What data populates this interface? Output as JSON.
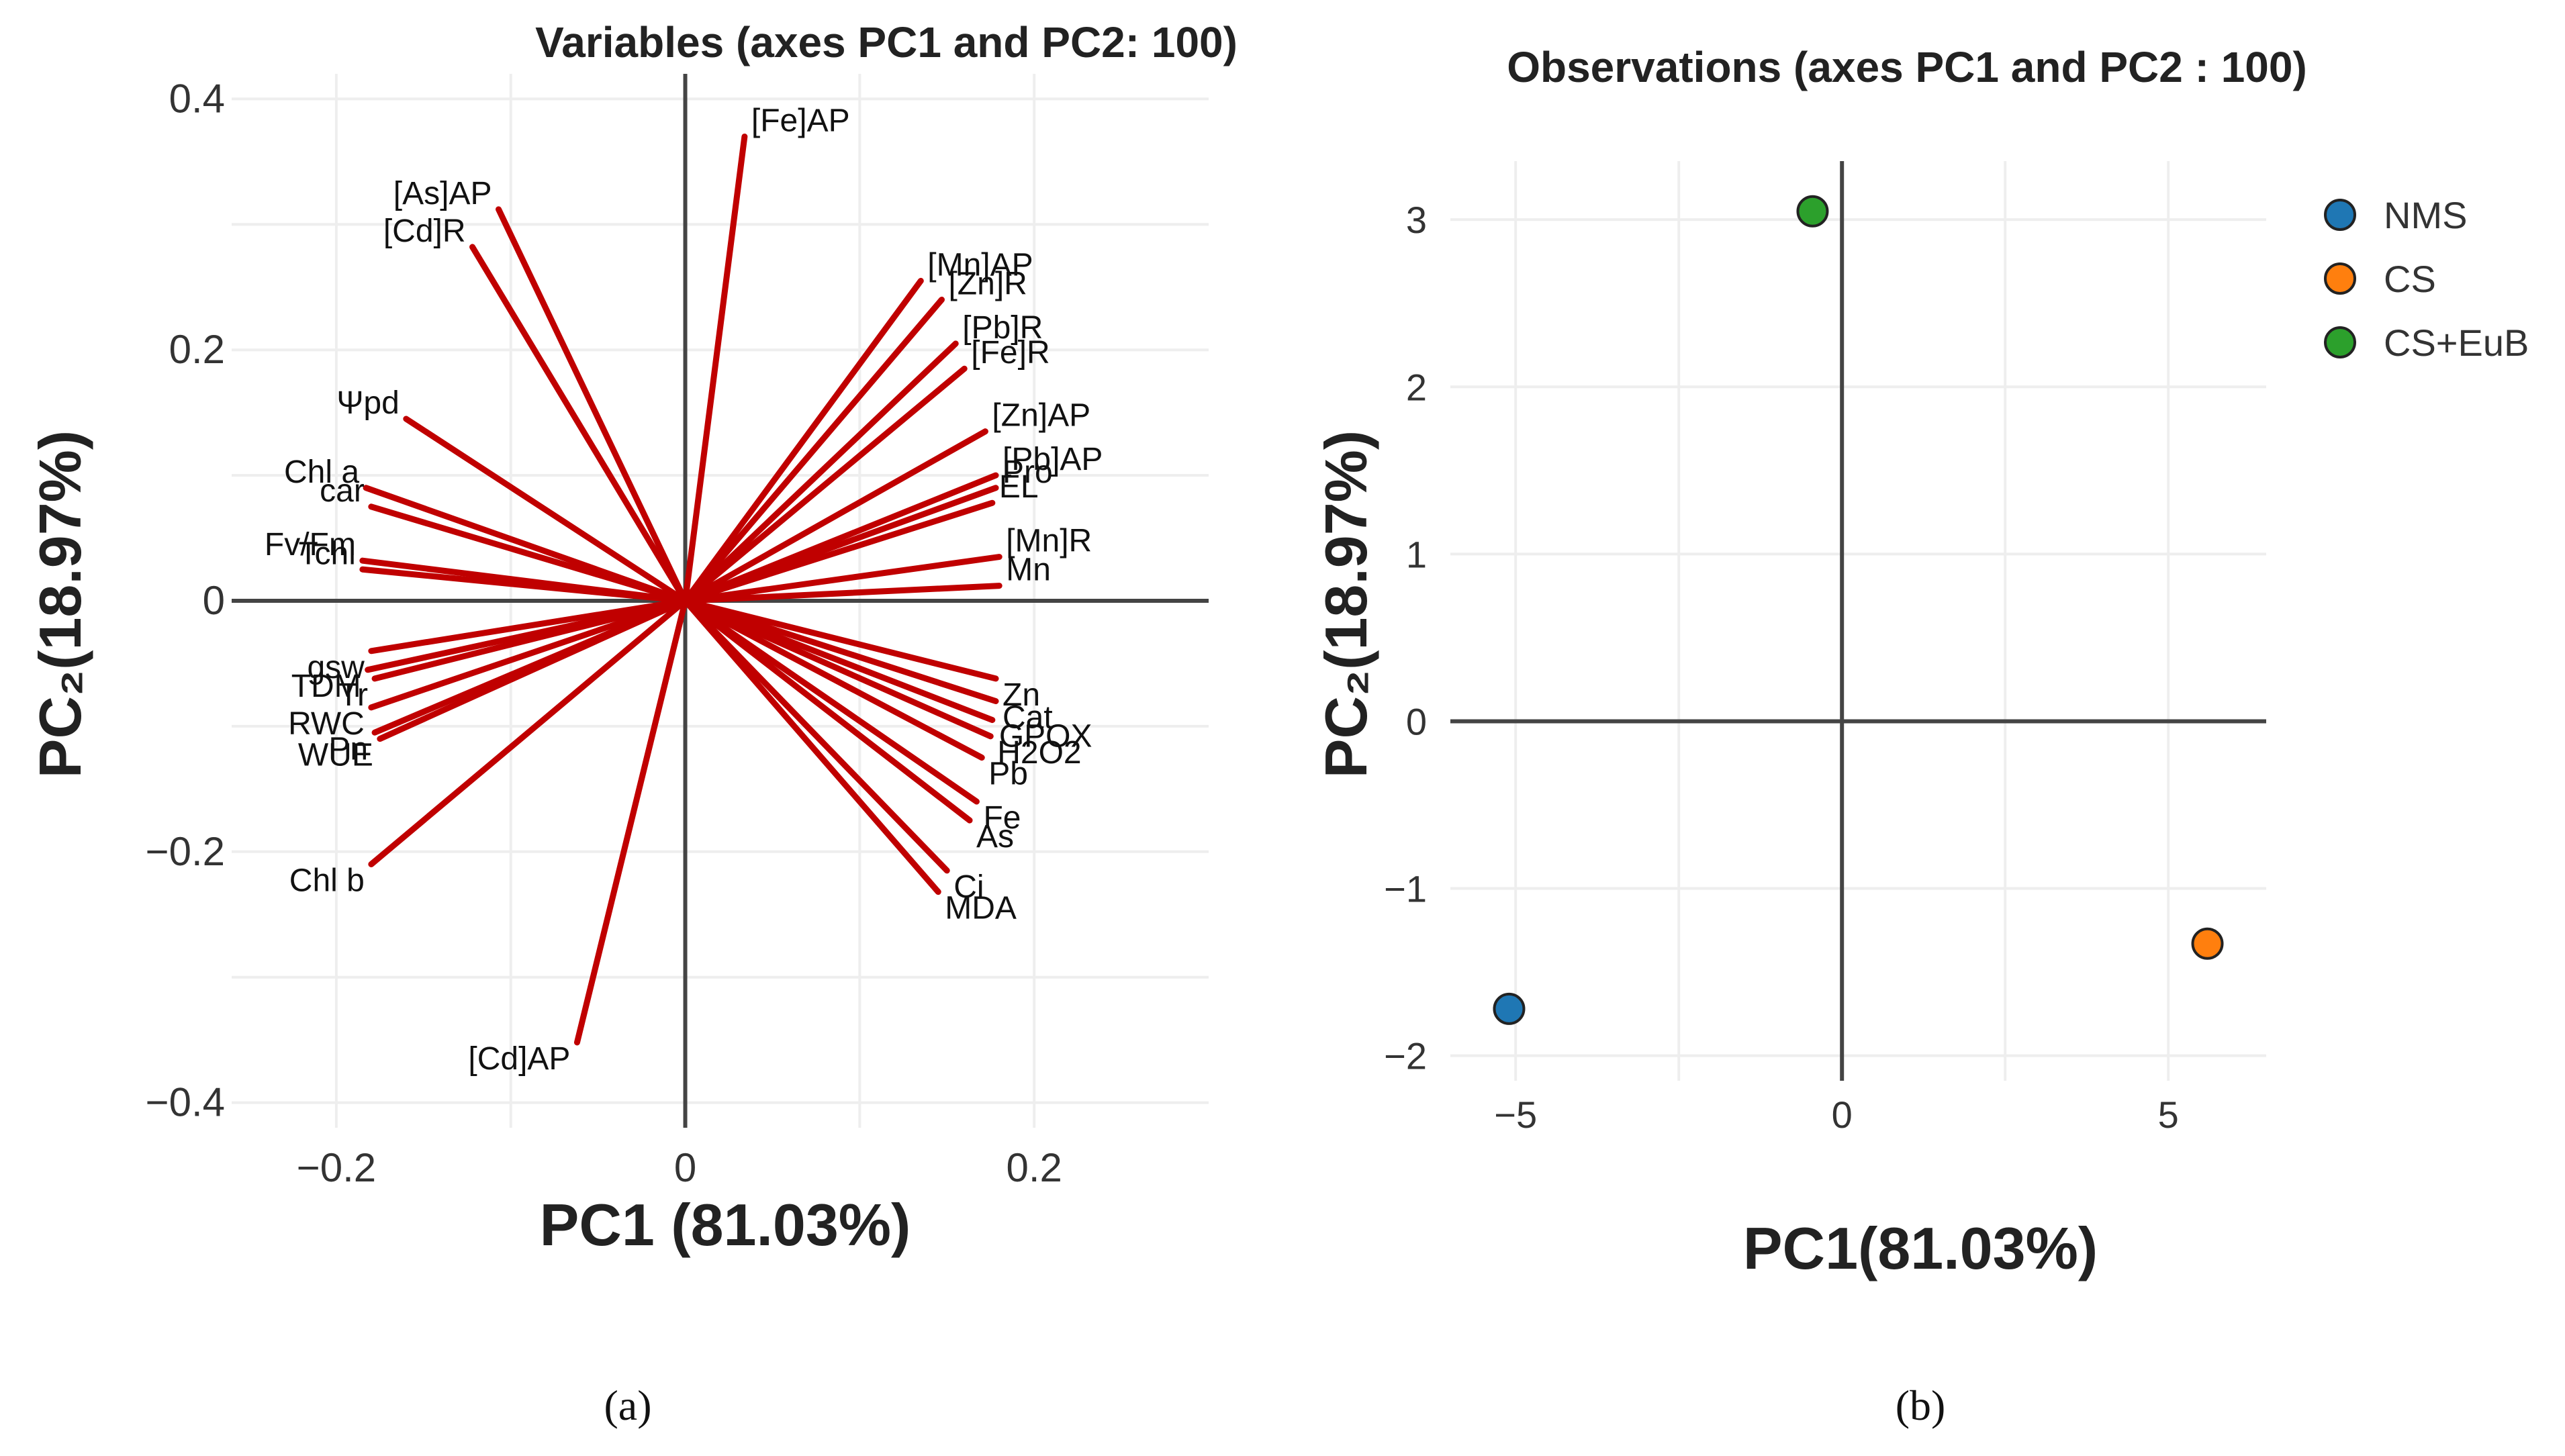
{
  "chart_data": [
    {
      "type": "scatter",
      "title": "Variables (axes PC1 and PC2: 100)",
      "xlabel": "PC1 (81.03%)",
      "ylabel": "PC₂(18.97%)",
      "xlim": [
        -0.26,
        0.3
      ],
      "ylim": [
        -0.42,
        0.42
      ],
      "xticks": [
        "−0.2",
        "0",
        "0.2"
      ],
      "yticks": [
        "0.4",
        "0.2",
        "0",
        "−0.2",
        "−0.4"
      ],
      "caption": "(a)",
      "vectors": [
        {
          "label": "[Fe]AP",
          "x": 0.034,
          "y": 0.37
        },
        {
          "label": "[As]AP",
          "x": -0.107,
          "y": 0.312
        },
        {
          "label": "[Cd]R",
          "x": -0.122,
          "y": 0.282
        },
        {
          "label": "Ψpd",
          "x": -0.16,
          "y": 0.145
        },
        {
          "label": "Chl a",
          "x": -0.183,
          "y": 0.09
        },
        {
          "label": "car",
          "x": -0.18,
          "y": 0.075
        },
        {
          "label": "Fv/Fm",
          "x": -0.185,
          "y": 0.032
        },
        {
          "label": "Tchl",
          "x": -0.185,
          "y": 0.025
        },
        {
          "label": "gsw",
          "x": -0.18,
          "y": -0.04
        },
        {
          "label": "TDM",
          "x": -0.182,
          "y": -0.055
        },
        {
          "label": "Tr",
          "x": -0.178,
          "y": -0.062
        },
        {
          "label": "RWC",
          "x": -0.18,
          "y": -0.085
        },
        {
          "label": "Pn",
          "x": -0.178,
          "y": -0.105
        },
        {
          "label": "WUE",
          "x": -0.175,
          "y": -0.11
        },
        {
          "label": "Chl b",
          "x": -0.18,
          "y": -0.21
        },
        {
          "label": "[Cd]AP",
          "x": -0.062,
          "y": -0.352
        },
        {
          "label": "[Mn]AP",
          "x": 0.135,
          "y": 0.255
        },
        {
          "label": "[Zn]R",
          "x": 0.147,
          "y": 0.24
        },
        {
          "label": "[Pb]R",
          "x": 0.155,
          "y": 0.205
        },
        {
          "label": "[Fe]R",
          "x": 0.16,
          "y": 0.185
        },
        {
          "label": "[Zn]AP",
          "x": 0.172,
          "y": 0.135
        },
        {
          "label": "[Pb]AP",
          "x": 0.178,
          "y": 0.1
        },
        {
          "label": "Pro",
          "x": 0.178,
          "y": 0.09
        },
        {
          "label": "EL",
          "x": 0.176,
          "y": 0.078
        },
        {
          "label": "[Mn]R",
          "x": 0.18,
          "y": 0.035
        },
        {
          "label": "Mn",
          "x": 0.18,
          "y": 0.012
        },
        {
          "label": "Zn",
          "x": 0.178,
          "y": -0.062
        },
        {
          "label": "Cat",
          "x": 0.178,
          "y": -0.08
        },
        {
          "label": "GPOX",
          "x": 0.176,
          "y": -0.095
        },
        {
          "label": "H2O2",
          "x": 0.175,
          "y": -0.108
        },
        {
          "label": "Pb",
          "x": 0.17,
          "y": -0.125
        },
        {
          "label": "Fe",
          "x": 0.167,
          "y": -0.16
        },
        {
          "label": "As",
          "x": 0.163,
          "y": -0.175
        },
        {
          "label": "Ci",
          "x": 0.15,
          "y": -0.215
        },
        {
          "label": "MDA",
          "x": 0.145,
          "y": -0.232
        }
      ]
    },
    {
      "type": "scatter",
      "title": "Observations (axes PC1 and PC2 : 100)",
      "xlabel": "PC1(81.03%)",
      "ylabel": "PC₂(18.97%)",
      "xlim": [
        -6.0,
        6.5
      ],
      "ylim": [
        -2.15,
        3.35
      ],
      "xticks": [
        "−5",
        "0",
        "5"
      ],
      "yticks": [
        "3",
        "2",
        "1",
        "0",
        "−1",
        "−2"
      ],
      "caption": "(b)",
      "series": [
        {
          "name": "NMS",
          "color": "#1f77b4",
          "x": -5.1,
          "y": -1.72
        },
        {
          "name": "CS",
          "color": "#ff7f0e",
          "x": 5.6,
          "y": -1.33
        },
        {
          "name": "CS+EuB",
          "color": "#2ca02c",
          "x": -0.45,
          "y": 3.05
        }
      ]
    }
  ]
}
